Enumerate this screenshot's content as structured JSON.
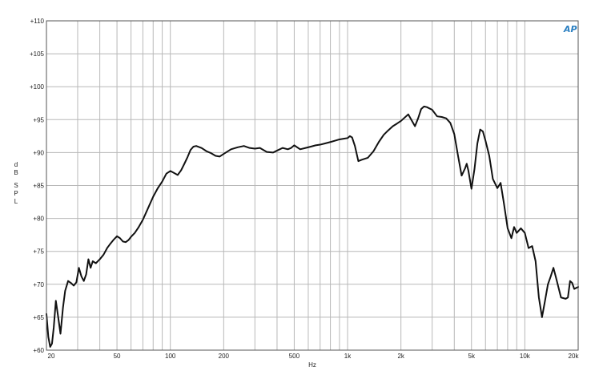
{
  "chart_data": {
    "type": "line",
    "title": "",
    "xlabel": "Hz",
    "ylabel": "dB SPL",
    "xscale": "log",
    "xlim": [
      20,
      20000
    ],
    "ylim": [
      60,
      110
    ],
    "grid": true,
    "line_color": "#111111",
    "grid_color": "#b8b8b8",
    "brand_mark": "AP",
    "brand_color": "#2a7fc1",
    "x_tick_labels": [
      {
        "value": 20,
        "label": "20"
      },
      {
        "value": 50,
        "label": "50"
      },
      {
        "value": 100,
        "label": "100"
      },
      {
        "value": 200,
        "label": "200"
      },
      {
        "value": 500,
        "label": "500"
      },
      {
        "value": 1000,
        "label": "1k"
      },
      {
        "value": 2000,
        "label": "2k"
      },
      {
        "value": 5000,
        "label": "5k"
      },
      {
        "value": 10000,
        "label": "10k"
      },
      {
        "value": 20000,
        "label": "20k"
      }
    ],
    "y_tick_labels": [
      {
        "value": 60,
        "label": "+60"
      },
      {
        "value": 65,
        "label": "+65"
      },
      {
        "value": 70,
        "label": "+70"
      },
      {
        "value": 75,
        "label": "+75"
      },
      {
        "value": 80,
        "label": "+80"
      },
      {
        "value": 85,
        "label": "+85"
      },
      {
        "value": 90,
        "label": "+90"
      },
      {
        "value": 95,
        "label": "+95"
      },
      {
        "value": 100,
        "label": "+100"
      },
      {
        "value": 105,
        "label": "+105"
      },
      {
        "value": 110,
        "label": "+110"
      }
    ],
    "series": [
      {
        "x": [
          20,
          20.5,
          21,
          21.5,
          22,
          22.6,
          23.3,
          24,
          24.8,
          25.5,
          26.5,
          27.5,
          28.5,
          29.5,
          30.5,
          31.5,
          32.5,
          33.5,
          34.5,
          35.5,
          36.5,
          38,
          40,
          42,
          44,
          46,
          48,
          50,
          52,
          54,
          56,
          58,
          60,
          63,
          66,
          70,
          75,
          80,
          85,
          90,
          95,
          100,
          105,
          110,
          115,
          120,
          125,
          130,
          135,
          140,
          150,
          160,
          170,
          180,
          190,
          200,
          220,
          240,
          260,
          280,
          300,
          320,
          350,
          380,
          400,
          430,
          460,
          480,
          500,
          540,
          580,
          620,
          660,
          700,
          750,
          800,
          850,
          900,
          950,
          1000,
          1030,
          1060,
          1100,
          1150,
          1200,
          1300,
          1400,
          1500,
          1600,
          1700,
          1800,
          1900,
          2000,
          2200,
          2400,
          2500,
          2600,
          2700,
          2800,
          3000,
          3200,
          3400,
          3600,
          3800,
          4000,
          4200,
          4400,
          4600,
          4700,
          4800,
          5000,
          5200,
          5400,
          5600,
          5800,
          6000,
          6300,
          6600,
          7000,
          7300,
          7600,
          8000,
          8400,
          8700,
          9000,
          9500,
          10000,
          10500,
          11000,
          11500,
          12000,
          12500,
          13000,
          13500,
          14000,
          14500,
          15000,
          16000,
          17000,
          17500,
          18000,
          18500,
          19000,
          20000
        ],
        "y": [
          65.5,
          62.0,
          60.5,
          61.0,
          63.5,
          67.5,
          65.0,
          62.5,
          66.5,
          69.0,
          70.5,
          70.2,
          69.8,
          70.3,
          72.5,
          71.2,
          70.5,
          71.5,
          73.8,
          72.5,
          73.5,
          73.2,
          73.8,
          74.5,
          75.5,
          76.2,
          76.8,
          77.3,
          77.0,
          76.5,
          76.4,
          76.7,
          77.2,
          77.8,
          78.6,
          79.8,
          81.6,
          83.3,
          84.6,
          85.6,
          86.8,
          87.2,
          86.9,
          86.6,
          87.3,
          88.3,
          89.3,
          90.4,
          90.9,
          91.0,
          90.7,
          90.2,
          89.9,
          89.5,
          89.4,
          89.8,
          90.5,
          90.8,
          91.0,
          90.7,
          90.6,
          90.7,
          90.1,
          90.0,
          90.3,
          90.7,
          90.5,
          90.7,
          91.1,
          90.5,
          90.7,
          90.9,
          91.1,
          91.2,
          91.4,
          91.6,
          91.8,
          92.0,
          92.1,
          92.2,
          92.5,
          92.3,
          91.0,
          88.7,
          88.9,
          89.2,
          90.2,
          91.6,
          92.7,
          93.4,
          94.0,
          94.4,
          94.8,
          95.8,
          94.0,
          95.2,
          96.6,
          97.0,
          96.9,
          96.5,
          95.5,
          95.4,
          95.2,
          94.5,
          92.8,
          89.5,
          86.5,
          87.6,
          88.3,
          87.3,
          84.5,
          87.5,
          91.4,
          93.5,
          93.2,
          91.8,
          89.5,
          86.0,
          84.6,
          85.4,
          82.5,
          78.5,
          77.0,
          78.7,
          77.8,
          78.5,
          77.8,
          75.5,
          75.8,
          73.5,
          68.0,
          65.0,
          67.5,
          70.0,
          71.2,
          72.5,
          71.0,
          68.0,
          67.8,
          68.0,
          70.5,
          70.2,
          69.3,
          69.6
        ]
      }
    ]
  }
}
